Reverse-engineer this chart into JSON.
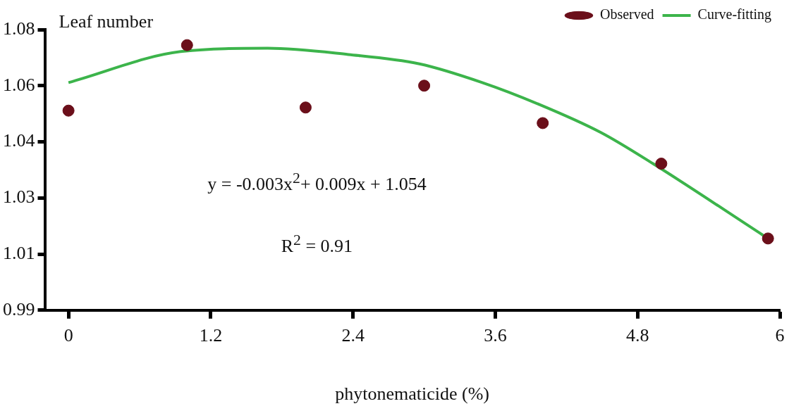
{
  "chart_data": {
    "type": "scatter",
    "ylabel": "Leaf number",
    "xlabel": "phytonematicide (%)",
    "annotations": [
      "y = -0.003x$^{2}$+ 0.009x + 1.054",
      "R$^{2}$ = 0.91"
    ],
    "xlim": [
      -0.2,
      6
    ],
    "xticks": [
      0,
      1.2,
      2.4,
      3.6,
      4.8,
      6
    ],
    "ylim": [
      0.99,
      1.08
    ],
    "yticks": [
      {
        "value": 0.99,
        "label": "0.99"
      },
      {
        "value": 1.008,
        "label": "1.01"
      },
      {
        "value": 1.026,
        "label": "1.03"
      },
      {
        "value": 1.044,
        "label": "1.04"
      },
      {
        "value": 1.062,
        "label": "1.06"
      },
      {
        "value": 1.08,
        "label": "1.08"
      }
    ],
    "grid": false,
    "legend": "top right",
    "series": [
      {
        "name": "Observed",
        "marker": "circle",
        "color": "#6b0f1a",
        "x": [
          0,
          1,
          2,
          3,
          4,
          5,
          5.9
        ],
        "values": [
          1.054,
          1.075,
          1.055,
          1.062,
          1.05,
          1.037,
          1.013
        ]
      },
      {
        "name": "Curve-fitting",
        "type": "line",
        "marker": "none",
        "color": "#3cb44b",
        "line_style": "solid",
        "x": [
          0,
          0.96,
          1.68,
          2.36,
          2.96,
          3.49,
          3.97,
          4.49,
          4.93,
          5.86
        ],
        "values": [
          1.063,
          1.073,
          1.074,
          1.072,
          1.069,
          1.063,
          1.056,
          1.047,
          1.037,
          1.014
        ]
      }
    ]
  }
}
